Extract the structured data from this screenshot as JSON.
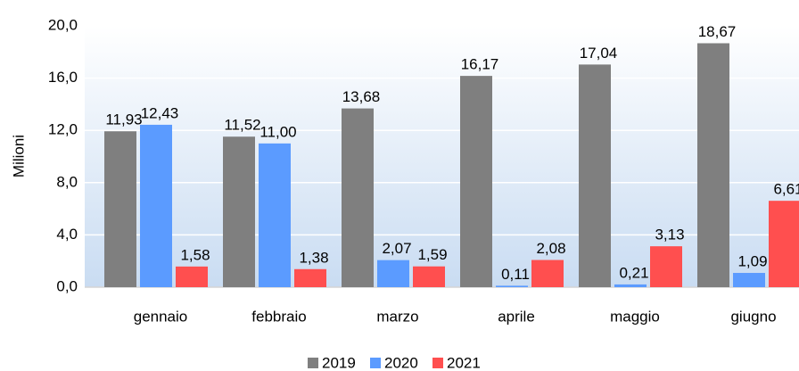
{
  "chart_data": {
    "type": "bar",
    "y_label": "Milioni",
    "categories": [
      "gennaio",
      "febbraio",
      "marzo",
      "aprile",
      "maggio",
      "giugno"
    ],
    "series": [
      {
        "name": "2019",
        "color": "#7f7f7f",
        "values": [
          11.93,
          11.52,
          13.68,
          16.17,
          17.04,
          18.67
        ],
        "value_labels": [
          "11,93",
          "11,52",
          "13,68",
          "16,17",
          "17,04",
          "18,67"
        ]
      },
      {
        "name": "2020",
        "color": "#5b9bff",
        "values": [
          12.43,
          11.0,
          2.07,
          0.11,
          0.21,
          1.09
        ],
        "value_labels": [
          "12,43",
          "11,00",
          "2,07",
          "0,11",
          "0,21",
          "1,09"
        ]
      },
      {
        "name": "2021",
        "color": "#ff4f4f",
        "values": [
          1.58,
          1.38,
          1.59,
          2.08,
          3.13,
          6.61
        ],
        "value_labels": [
          "1,58",
          "1,38",
          "1,59",
          "2,08",
          "3,13",
          "6,61"
        ]
      }
    ],
    "ylim": [
      0,
      20
    ],
    "yticks": [
      {
        "value": 0,
        "label": "0,0"
      },
      {
        "value": 4,
        "label": "4,0"
      },
      {
        "value": 8,
        "label": "8,0"
      },
      {
        "value": 12,
        "label": "12,0"
      },
      {
        "value": 16,
        "label": "16,0"
      },
      {
        "value": 20,
        "label": "20,0"
      }
    ],
    "grid": true,
    "legend": "bottom"
  }
}
